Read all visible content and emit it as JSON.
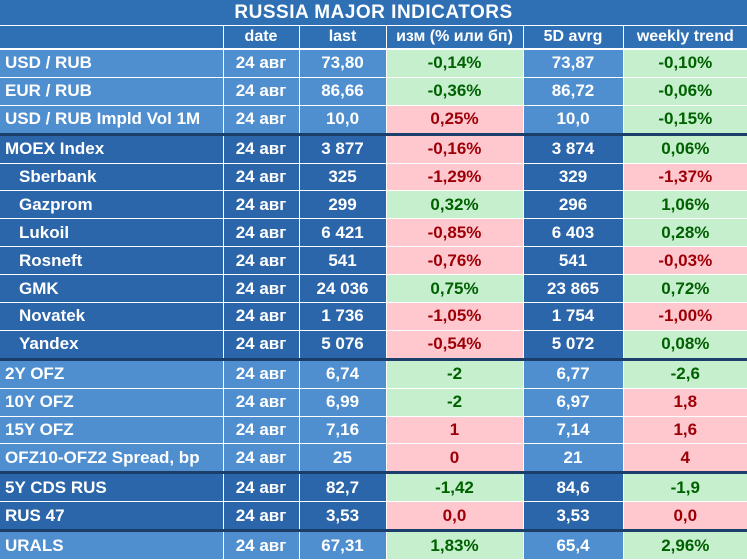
{
  "title": "RUSSIA    MAJOR    INDICATORS",
  "headers": [
    "",
    "date",
    "last",
    "изм (% или бп)",
    "5D avrg",
    "weekly trend"
  ],
  "groups": [
    {
      "shade": "light",
      "rows": [
        {
          "name": "USD / RUB",
          "date": "24 авг",
          "last": "73,80",
          "chg": "-0,14%",
          "chg_dir": "pos",
          "avg": "73,87",
          "trend": "-0,10%",
          "trend_dir": "pos"
        },
        {
          "name": "EUR / RUB",
          "date": "24 авг",
          "last": "86,66",
          "chg": "-0,36%",
          "chg_dir": "pos",
          "avg": "86,72",
          "trend": "-0,06%",
          "trend_dir": "pos"
        },
        {
          "name": "USD / RUB Impld Vol 1M",
          "date": "24 авг",
          "last": "10,0",
          "chg": "0,25%",
          "chg_dir": "neg",
          "avg": "10,0",
          "trend": "-0,15%",
          "trend_dir": "pos"
        }
      ]
    },
    {
      "shade": "dark",
      "rows": [
        {
          "name": "MOEX Index",
          "sub": false,
          "date": "24 авг",
          "last": "3 877",
          "chg": "-0,16%",
          "chg_dir": "neg",
          "avg": "3 874",
          "trend": "0,06%",
          "trend_dir": "pos"
        },
        {
          "name": "Sberbank",
          "sub": true,
          "date": "24 авг",
          "last": "325",
          "chg": "-1,29%",
          "chg_dir": "neg",
          "avg": "329",
          "trend": "-1,37%",
          "trend_dir": "neg"
        },
        {
          "name": "Gazprom",
          "sub": true,
          "date": "24 авг",
          "last": "299",
          "chg": "0,32%",
          "chg_dir": "pos",
          "avg": "296",
          "trend": "1,06%",
          "trend_dir": "pos"
        },
        {
          "name": "Lukoil",
          "sub": true,
          "date": "24 авг",
          "last": "6 421",
          "chg": "-0,85%",
          "chg_dir": "neg",
          "avg": "6 403",
          "trend": "0,28%",
          "trend_dir": "pos"
        },
        {
          "name": "Rosneft",
          "sub": true,
          "date": "24 авг",
          "last": "541",
          "chg": "-0,76%",
          "chg_dir": "neg",
          "avg": "541",
          "trend": "-0,03%",
          "trend_dir": "neg"
        },
        {
          "name": "GMK",
          "sub": true,
          "date": "24 авг",
          "last": "24 036",
          "chg": "0,75%",
          "chg_dir": "pos",
          "avg": "23 865",
          "trend": "0,72%",
          "trend_dir": "pos"
        },
        {
          "name": "Novatek",
          "sub": true,
          "date": "24 авг",
          "last": "1 736",
          "chg": "-1,05%",
          "chg_dir": "neg",
          "avg": "1 754",
          "trend": "-1,00%",
          "trend_dir": "neg"
        },
        {
          "name": "Yandex",
          "sub": true,
          "date": "24 авг",
          "last": "5 076",
          "chg": "-0,54%",
          "chg_dir": "neg",
          "avg": "5 072",
          "trend": "0,08%",
          "trend_dir": "pos"
        }
      ]
    },
    {
      "shade": "light",
      "rows": [
        {
          "name": "2Y OFZ",
          "date": "24 авг",
          "last": "6,74",
          "chg": "-2",
          "chg_dir": "pos",
          "avg": "6,77",
          "trend": "-2,6",
          "trend_dir": "pos"
        },
        {
          "name": "10Y OFZ",
          "date": "24 авг",
          "last": "6,99",
          "chg": "-2",
          "chg_dir": "pos",
          "avg": "6,97",
          "trend": "1,8",
          "trend_dir": "neg"
        },
        {
          "name": "15Y OFZ",
          "date": "24 авг",
          "last": "7,16",
          "chg": "1",
          "chg_dir": "neg",
          "avg": "7,14",
          "trend": "1,6",
          "trend_dir": "neg"
        },
        {
          "name": "OFZ10-OFZ2 Spread, bp",
          "date": "24 авг",
          "last": "25",
          "chg": "0",
          "chg_dir": "neg",
          "avg": "21",
          "trend": "4",
          "trend_dir": "neg"
        }
      ]
    },
    {
      "shade": "dark",
      "rows": [
        {
          "name": "5Y CDS RUS",
          "date": "24 авг",
          "last": "82,7",
          "chg": "-1,42",
          "chg_dir": "pos",
          "avg": "84,6",
          "trend": "-1,9",
          "trend_dir": "pos"
        },
        {
          "name": "RUS 47",
          "date": "24 авг",
          "last": "3,53",
          "chg": "0,0",
          "chg_dir": "neg",
          "avg": "3,53",
          "trend": "0,0",
          "trend_dir": "neg"
        }
      ]
    },
    {
      "shade": "light",
      "rows": [
        {
          "name": "URALS",
          "date": "24 авг",
          "last": "67,31",
          "chg": "1,83%",
          "chg_dir": "pos",
          "avg": "65,4",
          "trend": "2,96%",
          "trend_dir": "pos"
        }
      ]
    }
  ],
  "colors": {
    "header_blue": "#2f70b5",
    "light_blue": "#4f8fd0",
    "dark_blue": "#2c66aa",
    "positive_fill": "#c6efce",
    "positive_text": "#006100",
    "negative_fill": "#ffc7ce",
    "negative_text": "#9c0006"
  }
}
